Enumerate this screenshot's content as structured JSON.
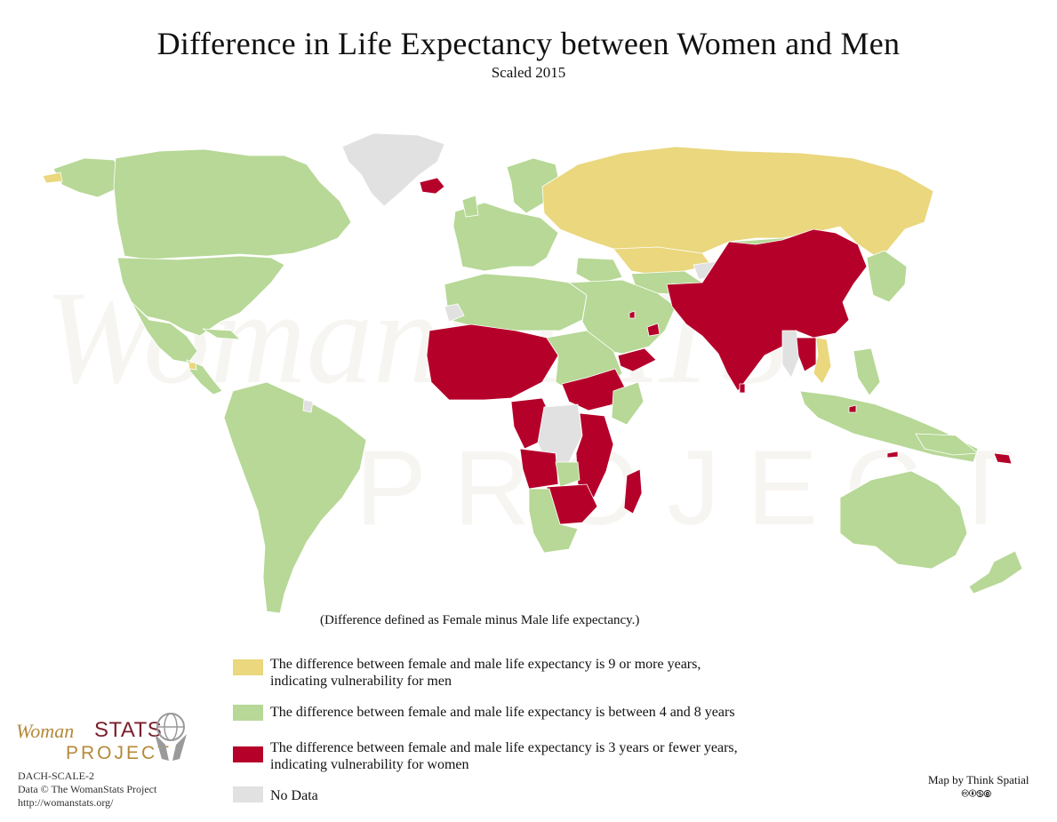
{
  "title": "Difference in Life Expectancy between Women and Men",
  "subtitle": "Scaled 2015",
  "definition": "(Difference defined as Female minus Male life expectancy.)",
  "colors": {
    "men_vulnerable": "#ead77e",
    "between": "#b7d896",
    "women_vulnerable": "#b5002a",
    "no_data": "#e1e1e1",
    "water": "#ffffff"
  },
  "legend": [
    {
      "key": "men_vulnerable",
      "line1": "The difference between female and male life expectancy is 9 or more years,",
      "line2": "indicating vulnerability for men"
    },
    {
      "key": "between",
      "line1": "The difference between female and male life expectancy is between 4 and 8 years",
      "line2": ""
    },
    {
      "key": "women_vulnerable",
      "line1": "The difference between female and male life expectancy is 3 years or fewer years,",
      "line2": "indicating vulnerability for women"
    },
    {
      "key": "no_data",
      "line1": "No Data",
      "line2": ""
    }
  ],
  "logo": {
    "woman": "Woman",
    "stats": "STATS",
    "project": "PROJECT",
    "icon": "globe-hands-icon"
  },
  "code": "DACH-SCALE-2",
  "data_credit": "Data © The WomanStats Project",
  "url": "http://womanstats.org/",
  "map_credit": "Map by Think Spatial",
  "license_icons": "🅭🅯🄏🄍",
  "watermark": {
    "text_top": "WomanSTATS",
    "text_bottom": "PROJECT"
  }
}
